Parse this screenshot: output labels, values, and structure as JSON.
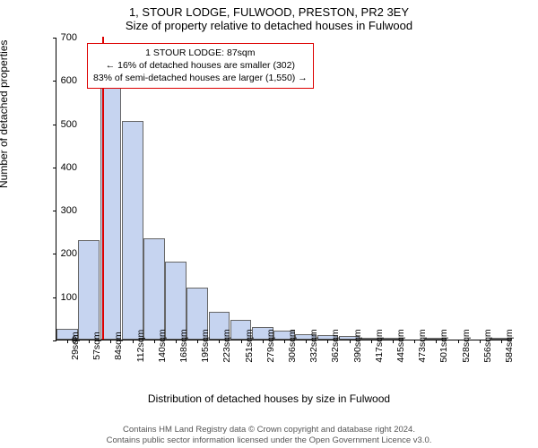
{
  "title_main": "1, STOUR LODGE, FULWOOD, PRESTON, PR2 3EY",
  "title_sub": "Size of property relative to detached houses in Fulwood",
  "y_label": "Number of detached properties",
  "x_label": "Distribution of detached houses by size in Fulwood",
  "footer_line1": "Contains HM Land Registry data © Crown copyright and database right 2024.",
  "footer_line2": "Contains public sector information licensed under the Open Government Licence v3.0.",
  "chart": {
    "type": "histogram",
    "ylim": [
      0,
      700
    ],
    "ytick_step": 100,
    "bar_fill": "#c6d4f0",
    "bar_border": "#666666",
    "marker_color": "#dd0000",
    "infobox_border": "#dd0000",
    "background_color": "#ffffff",
    "categories": [
      "29sqm",
      "57sqm",
      "84sqm",
      "112sqm",
      "140sqm",
      "168sqm",
      "195sqm",
      "223sqm",
      "251sqm",
      "279sqm",
      "306sqm",
      "332sqm",
      "362sqm",
      "390sqm",
      "417sqm",
      "445sqm",
      "473sqm",
      "501sqm",
      "528sqm",
      "556sqm",
      "584sqm"
    ],
    "values": [
      25,
      230,
      630,
      505,
      235,
      180,
      120,
      65,
      45,
      30,
      20,
      12,
      10,
      8,
      5,
      3,
      0,
      3,
      0,
      0,
      3
    ],
    "marker_position_index": 2.1,
    "marker_height_value": 700,
    "label_fontsize": 12,
    "tick_fontsize": 11
  },
  "infobox": {
    "line1": "1 STOUR LODGE: 87sqm",
    "line2": "← 16% of detached houses are smaller (302)",
    "line3": "83% of semi-detached houses are larger (1,550) →"
  }
}
